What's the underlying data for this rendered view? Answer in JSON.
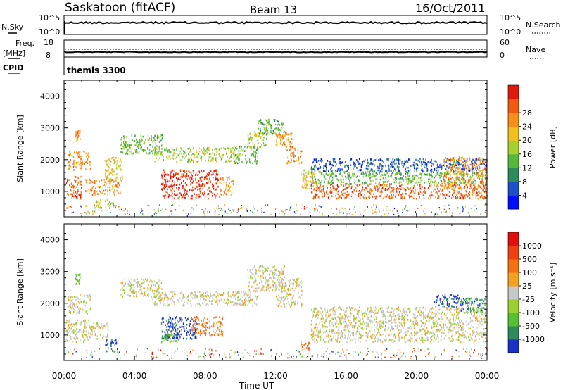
{
  "header": {
    "station": "Saskatoon (fitACF)",
    "beam": "Beam 13",
    "date": "16/Oct/2011"
  },
  "top_panels": {
    "nsky": {
      "label_top": "N.Sky",
      "left_ticks": [
        "10^5",
        "10^0"
      ],
      "right_ticks": [
        "10^5",
        "10^0"
      ],
      "right_label": "N.Search"
    },
    "freq": {
      "label_top": "Freq.",
      "label_unit": "[MHz]",
      "left_ticks": [
        "18",
        "8"
      ],
      "right_ticks": [
        "60",
        "0"
      ],
      "right_label": "Nave"
    },
    "cpid": {
      "label": "CPID",
      "value": "themis 3300"
    }
  },
  "chart_data": [
    {
      "type": "heatmap",
      "name": "power-panel",
      "ylabel": "Slant Range [km]",
      "xlabel": "Time UT",
      "x_ticks": [
        "00:00",
        "04:00",
        "08:00",
        "12:00",
        "16:00",
        "20:00",
        "00:00"
      ],
      "x_range_hours": [
        0,
        24
      ],
      "y_ticks": [
        1000,
        2000,
        3000,
        4000
      ],
      "y_range": [
        200,
        4500
      ],
      "colorbar": {
        "label": "Power [dB]",
        "ticks": [
          "4",
          "8",
          "12",
          "16",
          "20",
          "24",
          "28"
        ],
        "colors": [
          "#0010ff",
          "#1f4fc8",
          "#2e8a5a",
          "#55b83a",
          "#a5d030",
          "#f0c020",
          "#f59018",
          "#f05a10",
          "#e01a0a"
        ]
      },
      "regions": [
        {
          "t0": 0.1,
          "t1": 1.0,
          "r0": 800,
          "r1": 1500,
          "level": 7
        },
        {
          "t0": 0.2,
          "t1": 1.5,
          "r0": 1700,
          "r1": 2300,
          "level": 6
        },
        {
          "t0": 0.6,
          "t1": 0.9,
          "r0": 2600,
          "r1": 2950,
          "level": 6
        },
        {
          "t0": 1.2,
          "t1": 3.2,
          "r0": 900,
          "r1": 1400,
          "level": 6
        },
        {
          "t0": 2.3,
          "t1": 3.3,
          "r0": 1300,
          "r1": 2100,
          "level": 5
        },
        {
          "t0": 1.8,
          "t1": 2.8,
          "r0": 500,
          "r1": 800,
          "level": 4
        },
        {
          "t0": 3.2,
          "t1": 5.6,
          "r0": 2200,
          "r1": 2800,
          "level": 3
        },
        {
          "t0": 5.5,
          "t1": 8.8,
          "r0": 800,
          "r1": 1700,
          "level": 8
        },
        {
          "t0": 5.0,
          "t1": 9.8,
          "r0": 1950,
          "r1": 2400,
          "level": 4
        },
        {
          "t0": 8.8,
          "t1": 9.6,
          "r0": 900,
          "r1": 1500,
          "level": 6
        },
        {
          "t0": 9.6,
          "t1": 11.0,
          "r0": 1900,
          "r1": 2450,
          "level": 3
        },
        {
          "t0": 10.4,
          "t1": 11.5,
          "r0": 2400,
          "r1": 2900,
          "level": 4
        },
        {
          "t0": 11.0,
          "t1": 12.5,
          "r0": 2800,
          "r1": 3300,
          "level": 3
        },
        {
          "t0": 12.0,
          "t1": 13.0,
          "r0": 2400,
          "r1": 2900,
          "level": 6
        },
        {
          "t0": 12.6,
          "t1": 13.5,
          "r0": 1900,
          "r1": 2400,
          "level": 6
        },
        {
          "t0": 13.4,
          "t1": 14.2,
          "r0": 1100,
          "r1": 1700,
          "level": 5
        },
        {
          "t0": 14.0,
          "t1": 24.0,
          "r0": 800,
          "r1": 1250,
          "level": 7
        },
        {
          "t0": 14.0,
          "t1": 24.0,
          "r0": 1250,
          "r1": 1650,
          "level": 3
        },
        {
          "t0": 14.0,
          "t1": 24.0,
          "r0": 1650,
          "r1": 2050,
          "level": 1
        },
        {
          "t0": 21.5,
          "t1": 24.0,
          "r0": 1100,
          "r1": 2100,
          "level": 6
        }
      ]
    },
    {
      "type": "heatmap",
      "name": "velocity-panel",
      "ylabel": "Slant Range [km]",
      "xlabel": "Time UT",
      "x_ticks": [
        "00:00",
        "04:00",
        "08:00",
        "12:00",
        "16:00",
        "20:00",
        "00:00"
      ],
      "x_range_hours": [
        0,
        24
      ],
      "y_ticks": [
        1000,
        2000,
        3000,
        4000
      ],
      "y_range": [
        200,
        4500
      ],
      "colorbar": {
        "label": "Velocity [m s⁻¹]",
        "ticks": [
          "1000",
          "500",
          "100",
          "25",
          "-25",
          "-100",
          "-500",
          "-1000"
        ],
        "colors": [
          "#1a30c8",
          "#2e8a5a",
          "#55c030",
          "#9ad030",
          "#c8c8c8",
          "#f5a020",
          "#f57010",
          "#f04010",
          "#e01010"
        ]
      },
      "regions": [
        {
          "t0": 0.1,
          "t1": 1.5,
          "r0": 800,
          "r1": 1500,
          "level": 4
        },
        {
          "t0": 0.2,
          "t1": 1.5,
          "r0": 1700,
          "r1": 2300,
          "level": 4
        },
        {
          "t0": 0.6,
          "t1": 0.9,
          "r0": 2600,
          "r1": 2950,
          "level": 2
        },
        {
          "t0": 1.5,
          "t1": 2.5,
          "r0": 900,
          "r1": 1400,
          "level": 4
        },
        {
          "t0": 2.3,
          "t1": 3.0,
          "r0": 500,
          "r1": 900,
          "level": 0
        },
        {
          "t0": 3.2,
          "t1": 5.6,
          "r0": 2200,
          "r1": 2800,
          "level": 4
        },
        {
          "t0": 5.5,
          "t1": 7.5,
          "r0": 900,
          "r1": 1600,
          "level": 0
        },
        {
          "t0": 5.5,
          "t1": 6.5,
          "r0": 800,
          "r1": 1200,
          "level": 2
        },
        {
          "t0": 7.2,
          "t1": 9.0,
          "r0": 1000,
          "r1": 1600,
          "level": 6
        },
        {
          "t0": 5.0,
          "t1": 11.0,
          "r0": 1950,
          "r1": 2400,
          "level": 4
        },
        {
          "t0": 10.4,
          "t1": 12.5,
          "r0": 2400,
          "r1": 3200,
          "level": 4
        },
        {
          "t0": 12.0,
          "t1": 13.5,
          "r0": 1900,
          "r1": 2800,
          "level": 4
        },
        {
          "t0": 13.4,
          "t1": 14.0,
          "r0": 550,
          "r1": 800,
          "level": 6
        },
        {
          "t0": 14.0,
          "t1": 24.0,
          "r0": 800,
          "r1": 1900,
          "level": 4
        },
        {
          "t0": 21.0,
          "t1": 22.5,
          "r0": 1900,
          "r1": 2300,
          "level": 0
        },
        {
          "t0": 22.5,
          "t1": 24.0,
          "r0": 1700,
          "r1": 2200,
          "level": 1
        }
      ]
    }
  ]
}
